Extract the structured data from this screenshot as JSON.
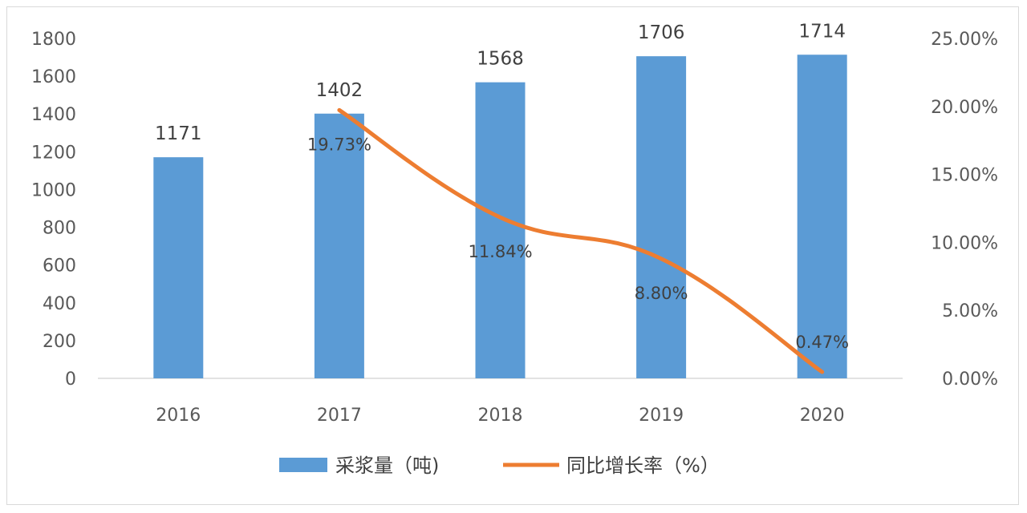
{
  "chart_data": {
    "type": "bar",
    "categories": [
      "2016",
      "2017",
      "2018",
      "2019",
      "2020"
    ],
    "series": [
      {
        "name": "采浆量（吨)",
        "type": "bar",
        "axis": "left",
        "values": [
          1171,
          1402,
          1568,
          1706,
          1714
        ],
        "labels": [
          "1171",
          "1402",
          "1568",
          "1706",
          "1714"
        ],
        "color": "#5b9bd5"
      },
      {
        "name": "同比增长率（%）",
        "type": "line",
        "axis": "right",
        "values": [
          null,
          19.73,
          11.84,
          8.8,
          0.47
        ],
        "labels": [
          "",
          "19.73%",
          "11.84%",
          "8.80%",
          "0.47%"
        ],
        "color": "#ed7d31"
      }
    ],
    "y_left": {
      "ylim": [
        0,
        1800
      ],
      "ticks": [
        "0",
        "200",
        "400",
        "600",
        "800",
        "1000",
        "1200",
        "1400",
        "1600",
        "1800"
      ]
    },
    "y_right": {
      "ylim": [
        0,
        25
      ],
      "ticks": [
        "0.00%",
        "5.00%",
        "10.00%",
        "15.00%",
        "20.00%",
        "25.00%"
      ]
    },
    "grid": false,
    "legend": "bottom-center"
  }
}
